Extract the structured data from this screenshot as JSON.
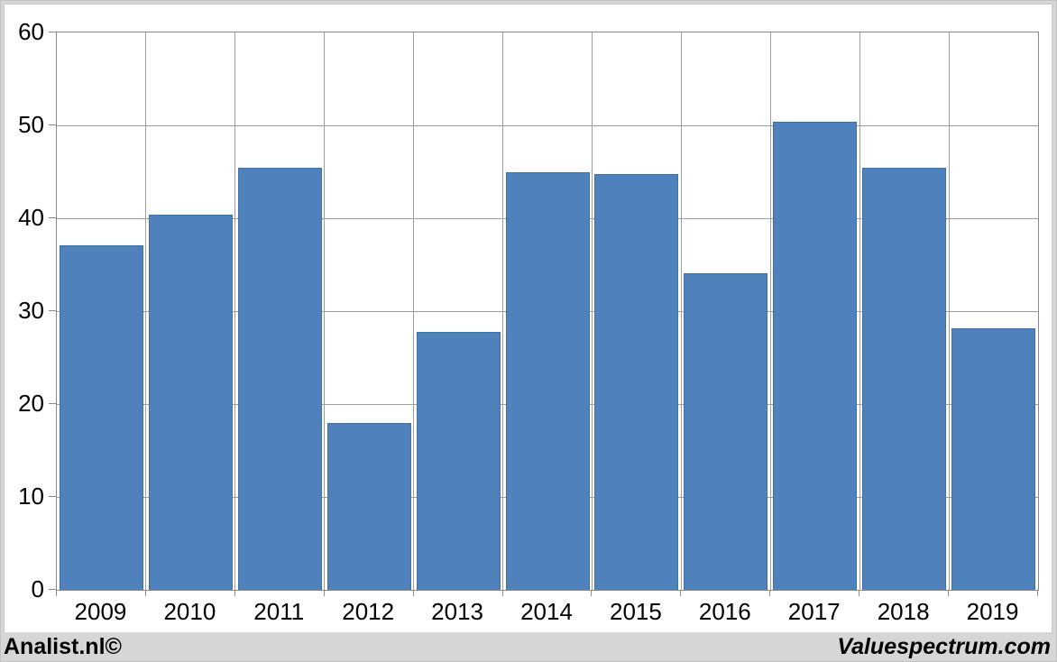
{
  "chart_data": {
    "type": "bar",
    "categories": [
      "2009",
      "2010",
      "2011",
      "2012",
      "2013",
      "2014",
      "2015",
      "2016",
      "2017",
      "2018",
      "2019"
    ],
    "values": [
      37.1,
      40.4,
      45.4,
      18.0,
      27.8,
      45.0,
      44.8,
      34.1,
      50.4,
      45.4,
      28.2
    ],
    "title": "",
    "xlabel": "",
    "ylabel": "",
    "ylim": [
      0,
      60
    ],
    "yticks": [
      0,
      10,
      20,
      30,
      40,
      50,
      60
    ],
    "grid": "both",
    "legend": "none",
    "bar_color": "#4F81BD",
    "bar_border_color": "#41719C",
    "gridline_color": "#9E9E9E",
    "axis_color": "#8A8A8A",
    "tick_label_color": "#000000"
  },
  "footer": {
    "left_text": "Analist.nl©",
    "right_text": "Valuespectrum.com"
  }
}
